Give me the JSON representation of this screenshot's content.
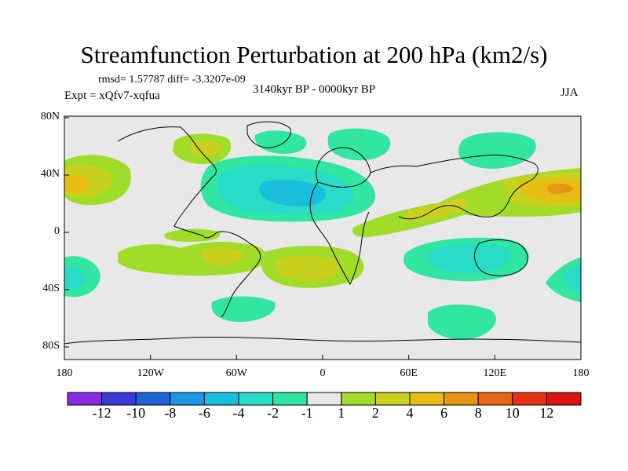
{
  "title": "Streamfunction Perturbation at 200 hPa (km2/s)",
  "stats": "rmsd= 1.57787 diff= -3.3207e-09",
  "period": "3140kyr BP - 0000kyr BP",
  "experiment": "Expt = xQfv7-xqfua",
  "season": "JJA",
  "lat_ticks": [
    "80N",
    "40N",
    "0",
    "40S",
    "80S"
  ],
  "lon_ticks": [
    "180",
    "120W",
    "60W",
    "0",
    "60E",
    "120E",
    "180"
  ],
  "colorbar": {
    "labels": [
      "-12",
      "-10",
      "-8",
      "-6",
      "-4",
      "-2",
      "-1",
      "1",
      "2",
      "4",
      "6",
      "8",
      "10",
      "12"
    ],
    "colors": [
      "#8a2be2",
      "#3a3ad6",
      "#1e64d6",
      "#1e96e6",
      "#19bedc",
      "#28dcc8",
      "#30e6a0",
      "#e8e8e8",
      "#a0dc28",
      "#c8d21e",
      "#e6be14",
      "#e69614",
      "#e66414",
      "#e63214",
      "#dc1414"
    ]
  },
  "colors": {
    "neutral": "#e8e8e8",
    "neg_light": "#30e6a0",
    "neg_mid": "#28dcc8",
    "neg_strong": "#19bedc",
    "pos_light": "#a0dc28",
    "pos_mid": "#c8d21e",
    "pos_strong": "#e6be14",
    "pos_stronger": "#e69614"
  }
}
